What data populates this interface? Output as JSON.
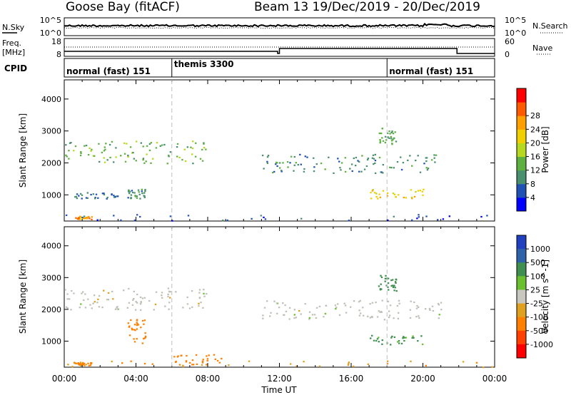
{
  "header": {
    "station": "Goose Bay (fitACF)",
    "beam_date": "Beam 13  19/Dec/2019 - 20/Dec/2019"
  },
  "noise_panel": {
    "left_label": "N.Sky",
    "left_ticks": [
      "10^5",
      "10^0"
    ],
    "right_label": "N.Search",
    "right_ticks": [
      "10^5",
      "10^0"
    ]
  },
  "freq_panel": {
    "left_label_1": "Freq.",
    "left_label_2": "[MHz]",
    "left_ticks": [
      "18",
      "8"
    ],
    "right_label": "Nave",
    "right_ticks": [
      "60",
      "0"
    ]
  },
  "cpid_panel": {
    "label": "CPID",
    "segments": [
      {
        "label": "normal (fast) 151",
        "start_hour": 0
      },
      {
        "label": "themis 3300",
        "start_hour": 6
      },
      {
        "label": "normal (fast) 151",
        "start_hour": 18
      }
    ]
  },
  "colors": {
    "power_scale": [
      "#0000ff",
      "#2251b4",
      "#4a8f6e",
      "#5fb040",
      "#b6d820",
      "#f0d000",
      "#ffa000",
      "#ff5a00",
      "#ff0000"
    ],
    "velocity_scale": [
      "#2040c0",
      "#2f62a8",
      "#3f8f50",
      "#6cc030",
      "#c8c8c0",
      "#c8c8c0",
      "#e0a020",
      "#ff8000",
      "#ff4000",
      "#ff0000"
    ],
    "ground_scatter": "#c0c0b8"
  },
  "chart_data": [
    {
      "type": "heatmap",
      "title": "",
      "ylabel": "Slant Range [km]",
      "xlabel": "",
      "xlim": [
        "00:00",
        "24:00"
      ],
      "ylim": [
        180,
        4600
      ],
      "y_ticks": [
        1000,
        2000,
        3000,
        4000
      ],
      "x_ticks": [
        "00:00",
        "04:00",
        "08:00",
        "12:00",
        "16:00",
        "20:00",
        "00:00"
      ],
      "colorbar": {
        "label": "Power [dB]",
        "range": [
          0,
          32
        ],
        "ticks": [
          4,
          8,
          12,
          16,
          20,
          24,
          28
        ]
      },
      "regions": [
        {
          "t": [
            0.0,
            8.0
          ],
          "range": [
            2000,
            2700
          ],
          "value": 14
        },
        {
          "t": [
            0.5,
            3.0
          ],
          "range": [
            900,
            1100
          ],
          "value": 8
        },
        {
          "t": [
            3.5,
            4.5
          ],
          "range": [
            900,
            1200
          ],
          "value": 10
        },
        {
          "t": [
            11.0,
            21.0
          ],
          "range": [
            1700,
            2300
          ],
          "value": 10
        },
        {
          "t": [
            17.0,
            20.0
          ],
          "range": [
            900,
            1200
          ],
          "value": 22
        },
        {
          "t": [
            17.5,
            18.5
          ],
          "range": [
            2600,
            3100
          ],
          "value": 12
        },
        {
          "t": [
            0.5,
            1.5
          ],
          "range": [
            250,
            350
          ],
          "value": 26
        },
        {
          "t": [
            0.0,
            24.0
          ],
          "range": [
            200,
            400
          ],
          "value": 6
        }
      ]
    },
    {
      "type": "heatmap",
      "title": "",
      "ylabel": "Slant Range [km]",
      "xlabel": "Time UT",
      "xlim": [
        "00:00",
        "24:00"
      ],
      "ylim": [
        180,
        4600
      ],
      "y_ticks": [
        1000,
        2000,
        3000,
        4000
      ],
      "x_ticks": [
        "00:00",
        "04:00",
        "08:00",
        "12:00",
        "16:00",
        "20:00",
        "00:00"
      ],
      "colorbar": {
        "label": "Velocity [m s^-1]",
        "ticks": [
          "1000",
          "500",
          "100",
          "25",
          "-25",
          "-100",
          "-500",
          "-1000"
        ]
      },
      "regions": [
        {
          "t": [
            0.0,
            8.0
          ],
          "range": [
            2000,
            2700
          ],
          "value": 0
        },
        {
          "t": [
            11.0,
            21.0
          ],
          "range": [
            1700,
            2300
          ],
          "value": 0
        },
        {
          "t": [
            17.0,
            20.0
          ],
          "range": [
            900,
            1200
          ],
          "value": 150
        },
        {
          "t": [
            17.5,
            18.5
          ],
          "range": [
            2600,
            3100
          ],
          "value": 200
        },
        {
          "t": [
            3.5,
            4.5
          ],
          "range": [
            900,
            1700
          ],
          "value": -300
        },
        {
          "t": [
            6.0,
            9.0
          ],
          "range": [
            250,
            600
          ],
          "value": -200
        },
        {
          "t": [
            0.5,
            1.5
          ],
          "range": [
            250,
            350
          ],
          "value": -150
        },
        {
          "t": [
            0.0,
            24.0
          ],
          "range": [
            200,
            400
          ],
          "value": -80
        }
      ]
    }
  ]
}
